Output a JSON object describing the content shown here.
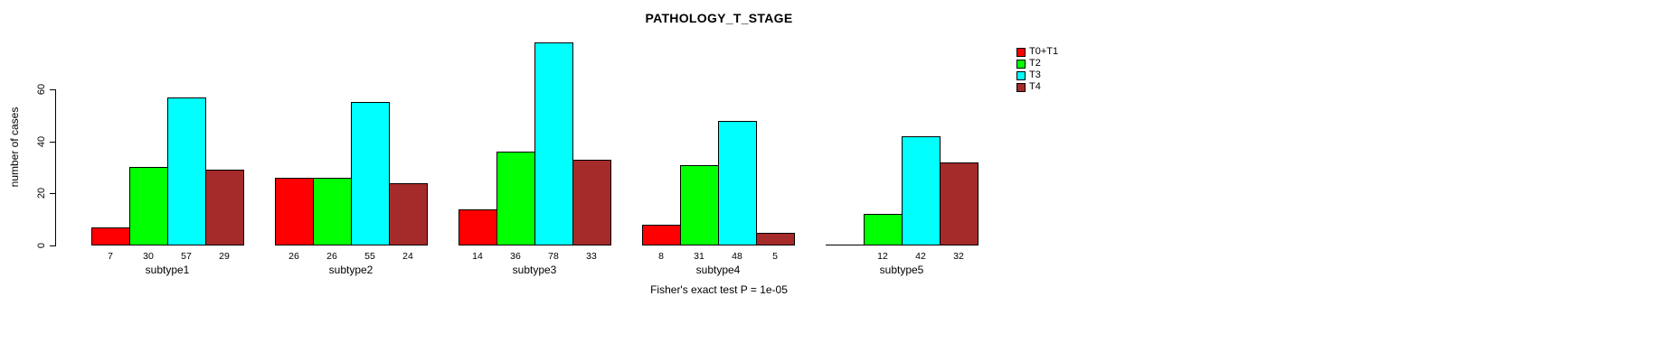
{
  "chart_data": {
    "type": "bar",
    "title": "PATHOLOGY_T_STAGE",
    "ylabel": "number of cases",
    "xlabel": "",
    "categories": [
      "subtype1",
      "subtype2",
      "subtype3",
      "subtype4",
      "subtype5"
    ],
    "series": [
      {
        "name": "T0+T1",
        "color": "#FF0000",
        "values": [
          7,
          26,
          14,
          8,
          0
        ]
      },
      {
        "name": "T2",
        "color": "#00FF00",
        "values": [
          30,
          26,
          36,
          31,
          12
        ]
      },
      {
        "name": "T3",
        "color": "#00FFFF",
        "values": [
          57,
          55,
          78,
          48,
          42
        ]
      },
      {
        "name": "T4",
        "color": "#A52A2A",
        "values": [
          29,
          24,
          33,
          5,
          32
        ]
      }
    ],
    "value_labels_shown": true,
    "yticks": [
      0,
      20,
      40,
      60
    ],
    "ylim": [
      0,
      78
    ],
    "grid": false,
    "legend_position": "top-right",
    "annotation": "Fisher's exact test P = 1e-05"
  }
}
